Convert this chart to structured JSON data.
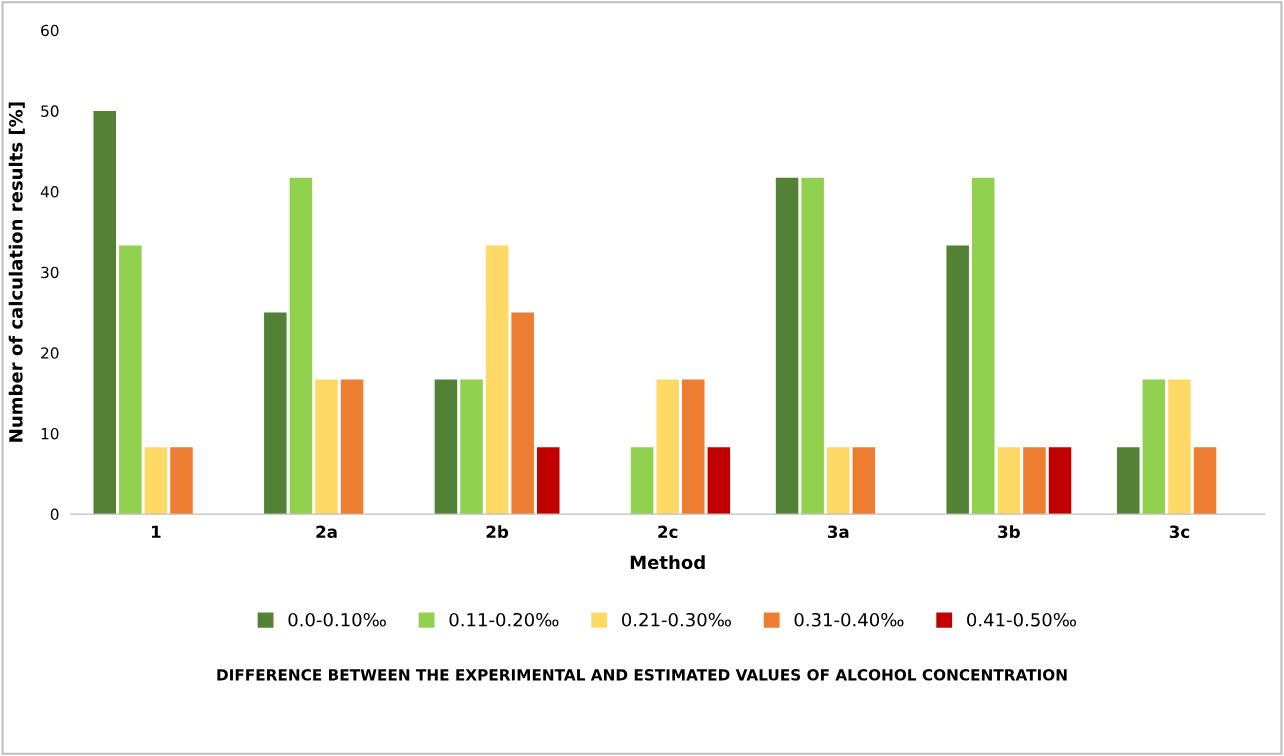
{
  "chart_data": {
    "type": "bar",
    "xlabel": "Method",
    "ylabel": "Number of calculation results [%]",
    "categories": [
      "1",
      "2a",
      "2b",
      "2c",
      "3a",
      "3b",
      "3c"
    ],
    "series": [
      {
        "name": "0.0-0.10‰",
        "color": "#538135",
        "values": [
          50,
          25,
          16.7,
          0,
          41.7,
          33.3,
          8.3
        ]
      },
      {
        "name": "0.11-0.20‰",
        "color": "#92d050",
        "values": [
          33.3,
          41.7,
          16.7,
          8.3,
          41.7,
          41.7,
          16.7
        ]
      },
      {
        "name": "0.21-0.30‰",
        "color": "#ffd966",
        "values": [
          8.3,
          16.7,
          33.3,
          16.7,
          8.3,
          8.3,
          16.7
        ]
      },
      {
        "name": "0.31-0.40‰",
        "color": "#ed7d31",
        "values": [
          8.3,
          16.7,
          25,
          16.7,
          8.3,
          8.3,
          8.3
        ]
      },
      {
        "name": "0.41-0.50‰",
        "color": "#c00000",
        "values": [
          0,
          0,
          8.3,
          8.3,
          0,
          8.3,
          0
        ]
      }
    ],
    "ylim": [
      0,
      60
    ],
    "yticks": [
      0,
      10,
      20,
      30,
      40,
      50,
      60
    ],
    "grid": false,
    "legend": "bottom",
    "annotations": [
      "DIFFERENCE BETWEEN THE EXPERIMENTAL AND ESTIMATED VALUES OF ALCOHOL CONCENTRATION"
    ]
  }
}
